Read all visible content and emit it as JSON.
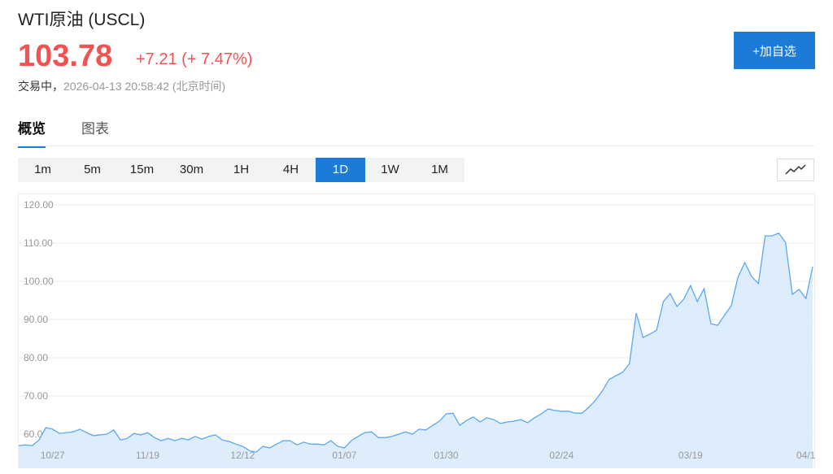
{
  "header": {
    "title": "WTI原油 (USCL)",
    "price": "103.78",
    "change": "+7.21 (+ 7.47%)",
    "status": "交易中，",
    "time": "2026-04-13 20:58:42 (北京时间)",
    "add_button": "+加自选"
  },
  "tabs": [
    {
      "label": "概览",
      "active": true
    },
    {
      "label": "图表",
      "active": false
    }
  ],
  "periods": [
    {
      "label": "1m"
    },
    {
      "label": "5m"
    },
    {
      "label": "15m"
    },
    {
      "label": "30m"
    },
    {
      "label": "1H"
    },
    {
      "label": "4H"
    },
    {
      "label": "1D",
      "active": true
    },
    {
      "label": "1W"
    },
    {
      "label": "1M"
    }
  ],
  "chart_type_icon": "line-chart-icon",
  "colors": {
    "accent": "#1c7bd6",
    "up": "#f25352",
    "line": "#5aa8f0",
    "fill": "#deedfc"
  },
  "chart_data": {
    "type": "area",
    "ylim": [
      51,
      122
    ],
    "y_ticks": [
      "120.00",
      "110.00",
      "100.00",
      "90.00",
      "80.00",
      "70.00",
      "60.00"
    ],
    "x_ticks": [
      {
        "label": "10/27",
        "index": 5
      },
      {
        "label": "11/19",
        "index": 19
      },
      {
        "label": "12/12",
        "index": 33
      },
      {
        "label": "01/07",
        "index": 48
      },
      {
        "label": "01/30",
        "index": 63
      },
      {
        "label": "02/24",
        "index": 80
      },
      {
        "label": "03/19",
        "index": 99
      },
      {
        "label": "04/1",
        "index": 116
      }
    ],
    "grid": true,
    "values": [
      57.0,
      57.2,
      57.0,
      58.5,
      61.7,
      61.3,
      60.2,
      60.4,
      60.6,
      61.3,
      60.4,
      59.6,
      59.8,
      60.0,
      61.1,
      58.5,
      58.9,
      60.2,
      59.8,
      60.4,
      59.1,
      58.3,
      58.9,
      58.3,
      58.9,
      58.5,
      59.4,
      58.7,
      59.4,
      59.8,
      58.5,
      58.1,
      57.4,
      56.8,
      55.7,
      55.3,
      56.8,
      56.4,
      57.4,
      58.3,
      58.3,
      57.2,
      57.9,
      57.4,
      57.4,
      57.2,
      58.3,
      56.8,
      56.4,
      58.3,
      59.4,
      60.4,
      60.6,
      59.1,
      59.1,
      59.4,
      60.0,
      60.6,
      60.0,
      61.3,
      61.1,
      62.3,
      63.4,
      65.3,
      65.5,
      62.3,
      63.6,
      64.5,
      63.2,
      64.3,
      63.8,
      62.8,
      63.2,
      63.4,
      63.8,
      63.0,
      64.3,
      65.3,
      66.6,
      66.2,
      66.0,
      66.0,
      65.5,
      65.5,
      67.0,
      68.9,
      71.3,
      74.3,
      75.3,
      76.2,
      78.5,
      91.7,
      85.3,
      86.2,
      87.2,
      94.7,
      96.8,
      93.4,
      95.3,
      98.9,
      94.7,
      98.1,
      88.9,
      88.5,
      91.1,
      93.6,
      101.1,
      104.9,
      101.3,
      99.4,
      111.9,
      111.9,
      112.6,
      110.2,
      96.6,
      97.9,
      95.5,
      103.78
    ]
  }
}
